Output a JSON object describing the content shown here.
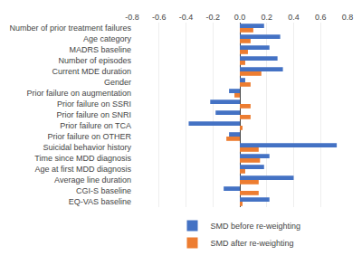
{
  "chart_data": {
    "type": "bar",
    "orientation": "horizontal",
    "categories": [
      "Number of prior treatment failures",
      "Age category",
      "MADRS baseline",
      "Number of episodes",
      "Current MDE duration",
      "Gender",
      "Prior failure on augmentation",
      "Prior failure on SSRI",
      "Prior failure on SNRI",
      "Prior failure on TCA",
      "Prior failure on OTHER",
      "Suicidal behavior history",
      "Time since MDD diagnosis",
      "Age at first MDD diagnosis",
      "Average line duration",
      "CGI-S baseline",
      "EQ-VAS baseline"
    ],
    "series": [
      {
        "name": "SMD before re-weighting",
        "color": "#4472C4",
        "values": [
          0.18,
          0.3,
          0.22,
          0.28,
          0.32,
          0.04,
          -0.08,
          -0.22,
          -0.18,
          -0.38,
          -0.08,
          0.72,
          0.22,
          0.18,
          0.4,
          -0.12,
          0.22
        ]
      },
      {
        "name": "SMD after re-weighting",
        "color": "#ED7D31",
        "values": [
          0.1,
          0.08,
          0.06,
          0.04,
          0.16,
          0.08,
          -0.04,
          0.08,
          0.08,
          0.02,
          -0.1,
          0.14,
          0.15,
          0.04,
          0.14,
          0.14,
          0.02
        ]
      }
    ],
    "xlim": [
      -0.8,
      0.8
    ],
    "xticks": [
      -0.8,
      -0.6,
      -0.4,
      -0.2,
      {
        "value": 0.0,
        "label": "0.0"
      },
      0.2,
      0.4,
      0.6,
      0.8
    ],
    "grid": true,
    "legend": "bottom"
  }
}
